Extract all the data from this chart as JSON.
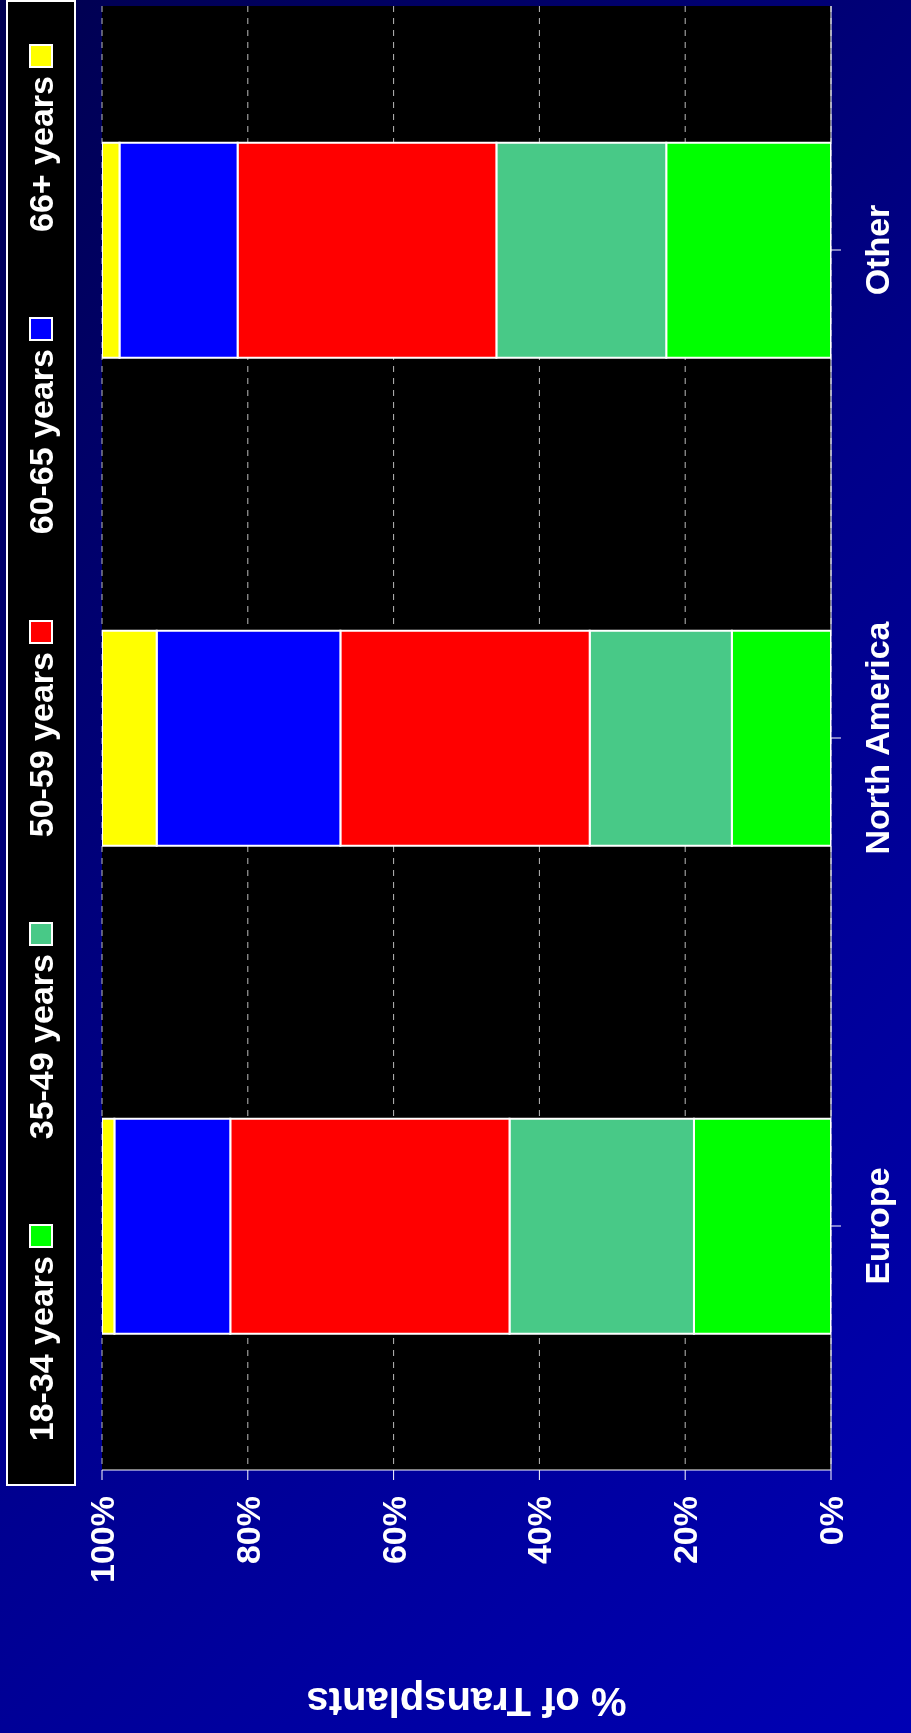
{
  "chart_data": {
    "type": "bar",
    "stacked": true,
    "orientation": "horizontal",
    "categories": [
      "Other",
      "North America",
      "Europe"
    ],
    "xlabel": "% of Transplants",
    "series": [
      {
        "name": "18-34 years",
        "color": "#00ff00",
        "values": [
          22.6,
          13.6,
          18.8
        ]
      },
      {
        "name": "35-49 years",
        "color": "#48c987",
        "values": [
          23.3,
          19.5,
          25.3
        ]
      },
      {
        "name": "50-59 years",
        "color": "#ff0000",
        "values": [
          35.5,
          34.2,
          38.3
        ]
      },
      {
        "name": "60-65 years",
        "color": "#0000ff",
        "values": [
          16.2,
          25.2,
          15.9
        ]
      },
      {
        "name": "66+ years",
        "color": "#ffff00",
        "values": [
          2.4,
          7.5,
          1.7
        ]
      }
    ],
    "xlim": [
      100,
      0
    ],
    "xticks": [
      {
        "value": 100,
        "label": "100%"
      },
      {
        "value": 80,
        "label": "80%"
      },
      {
        "value": 60,
        "label": "60%"
      },
      {
        "value": 40,
        "label": "40%"
      },
      {
        "value": 20,
        "label": "20%"
      },
      {
        "value": 0,
        "label": "0%"
      }
    ],
    "grid": "x",
    "legend": "left"
  }
}
